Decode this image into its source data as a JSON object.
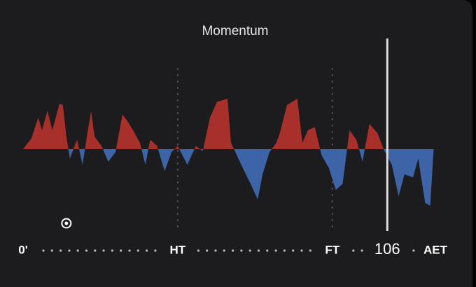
{
  "chart_data": {
    "type": "momentum",
    "title": "Momentum",
    "x": [
      0,
      2.4,
      4.4,
      5.5,
      7.1,
      8.5,
      10.6,
      11.6,
      12.6,
      13.6,
      15.7,
      17.3,
      18.7,
      19.8,
      20.8,
      22.8,
      24.8,
      26.9,
      28.9,
      30.3,
      32,
      34,
      35.6,
      37,
      39,
      41.2,
      43.2,
      45,
      47.8,
      50.3,
      52.3,
      54.4,
      56.4,
      59.5,
      60.5,
      63.5,
      66.2,
      68.3,
      69.7,
      71.7,
      73.7,
      74.7,
      76.8,
      79.8,
      81.3,
      82.9,
      84.9,
      86.9,
      89,
      91,
      93,
      95,
      97,
      98.8,
      100.8,
      103.2,
      104.9,
      107.3,
      109.3,
      111,
      113.5,
      115,
      117,
      118.5,
      119.5
    ],
    "values": [
      0,
      17,
      50,
      30,
      61,
      30,
      72,
      70,
      20,
      -15,
      15,
      -25,
      25,
      60,
      20,
      5,
      -20,
      -5,
      55,
      45,
      30,
      10,
      -25,
      15,
      5,
      -35,
      -5,
      5,
      -25,
      5,
      -3,
      50,
      75,
      80,
      10,
      -25,
      -55,
      -80,
      -40,
      -5,
      10,
      25,
      70,
      80,
      10,
      30,
      35,
      -10,
      -30,
      -65,
      -55,
      30,
      15,
      -20,
      40,
      25,
      0,
      -25,
      -75,
      -40,
      -45,
      -15,
      -85,
      -90,
      0
    ],
    "positive_color": "#a8302a",
    "negative_color": "#3c64a6",
    "xlim": [
      0,
      120
    ],
    "ylim": [
      -100,
      100
    ],
    "xticks": [
      {
        "value": 0,
        "label": "0'"
      },
      {
        "value": 45,
        "label": "HT"
      },
      {
        "value": 90,
        "label": "FT"
      },
      {
        "value": 120,
        "label": "AET"
      }
    ],
    "period_lines": [
      45,
      90
    ],
    "current_minute": 106,
    "goal_minutes": [
      12.6
    ]
  }
}
